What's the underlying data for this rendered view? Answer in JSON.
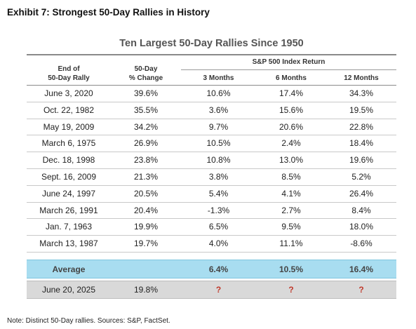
{
  "exhibit_title": "Exhibit 7: Strongest 50-Day Rallies in History",
  "table_title": "Ten Largest 50-Day Rallies Since 1950",
  "group_header": "S&P 500 Index Return",
  "columns": {
    "end_date": [
      "End of",
      "50-Day Rally"
    ],
    "pct_change": [
      "50-Day",
      "% Change"
    ],
    "m3": "3 Months",
    "m6": "6 Months",
    "m12": "12 Months"
  },
  "rows": [
    {
      "date": "June 3, 2020",
      "change": "39.6%",
      "m3": "10.6%",
      "m6": "17.4%",
      "m12": "34.3%"
    },
    {
      "date": "Oct. 22, 1982",
      "change": "35.5%",
      "m3": "3.6%",
      "m6": "15.6%",
      "m12": "19.5%"
    },
    {
      "date": "May 19, 2009",
      "change": "34.2%",
      "m3": "9.7%",
      "m6": "20.6%",
      "m12": "22.8%"
    },
    {
      "date": "March 6, 1975",
      "change": "26.9%",
      "m3": "10.5%",
      "m6": "2.4%",
      "m12": "18.4%"
    },
    {
      "date": "Dec. 18, 1998",
      "change": "23.8%",
      "m3": "10.8%",
      "m6": "13.0%",
      "m12": "19.6%"
    },
    {
      "date": "Sept. 16, 2009",
      "change": "21.3%",
      "m3": "3.8%",
      "m6": "8.5%",
      "m12": "5.2%"
    },
    {
      "date": "June 24, 1997",
      "change": "20.5%",
      "m3": "5.4%",
      "m6": "4.1%",
      "m12": "26.4%"
    },
    {
      "date": "March 26, 1991",
      "change": "20.4%",
      "m3": "-1.3%",
      "m6": "2.7%",
      "m12": "8.4%"
    },
    {
      "date": "Jan. 7, 1963",
      "change": "19.9%",
      "m3": "6.5%",
      "m6": "9.5%",
      "m12": "18.0%"
    },
    {
      "date": "March 13, 1987",
      "change": "19.7%",
      "m3": "4.0%",
      "m6": "11.1%",
      "m12": "-8.6%"
    }
  ],
  "average": {
    "label": "Average",
    "m3": "6.4%",
    "m6": "10.5%",
    "m12": "16.4%"
  },
  "current": {
    "date": "June 20, 2025",
    "change": "19.8%",
    "m3": "?",
    "m6": "?",
    "m12": "?"
  },
  "note": "Note: Distinct 50-Day rallies. Sources: S&P, FactSet.",
  "colors": {
    "average_band": "#a8ddf0",
    "current_band": "#d9d9d9",
    "question_mark": "#c0392b"
  }
}
